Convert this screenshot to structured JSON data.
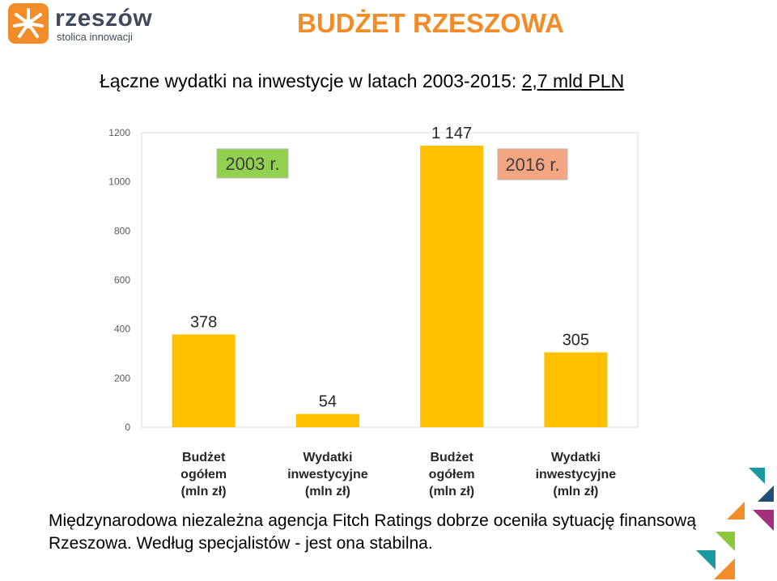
{
  "header": {
    "logo_name": "rzeszów",
    "logo_tagline": "stolica innowacji",
    "title": "BUDŻET RZESZOWA"
  },
  "subtitle": {
    "text": "Łączne wydatki na inwestycje w latach 2003-2015:",
    "total": "2,7 mld PLN"
  },
  "chart_data": {
    "type": "bar",
    "categories": [
      "Budżet ogółem (mln zł)",
      "Wydatki inwestycyjne (mln zł)",
      "Budżet ogółem (mln zł)",
      "Wydatki inwestycyjne (mln zł)"
    ],
    "category_lines": [
      [
        "Budżet",
        "ogółem",
        "(mln zł)"
      ],
      [
        "Wydatki",
        "inwestycyjne",
        "(mln zł)"
      ],
      [
        "Budżet",
        "ogółem",
        "(mln zł)"
      ],
      [
        "Wydatki",
        "inwestycyjne",
        "(mln zł)"
      ]
    ],
    "values": [
      378,
      54,
      1147,
      305
    ],
    "data_labels": [
      "378",
      "54",
      "1 147",
      "305"
    ],
    "yticks": [
      0,
      200,
      400,
      600,
      800,
      1000,
      1200
    ],
    "ylim": [
      0,
      1200
    ],
    "grid": false,
    "bar_color": "#ffc000",
    "annotations": [
      {
        "text": "2003 r.",
        "color": "#92d050"
      },
      {
        "text": "2016 r.",
        "color": "#f4a582"
      }
    ]
  },
  "footer": {
    "note": "Międzynarodowa niezależna agencja Fitch Ratings dobrze oceniła sytuację finansową Rzeszowa. Według specjalistów - jest ona stabilna."
  }
}
